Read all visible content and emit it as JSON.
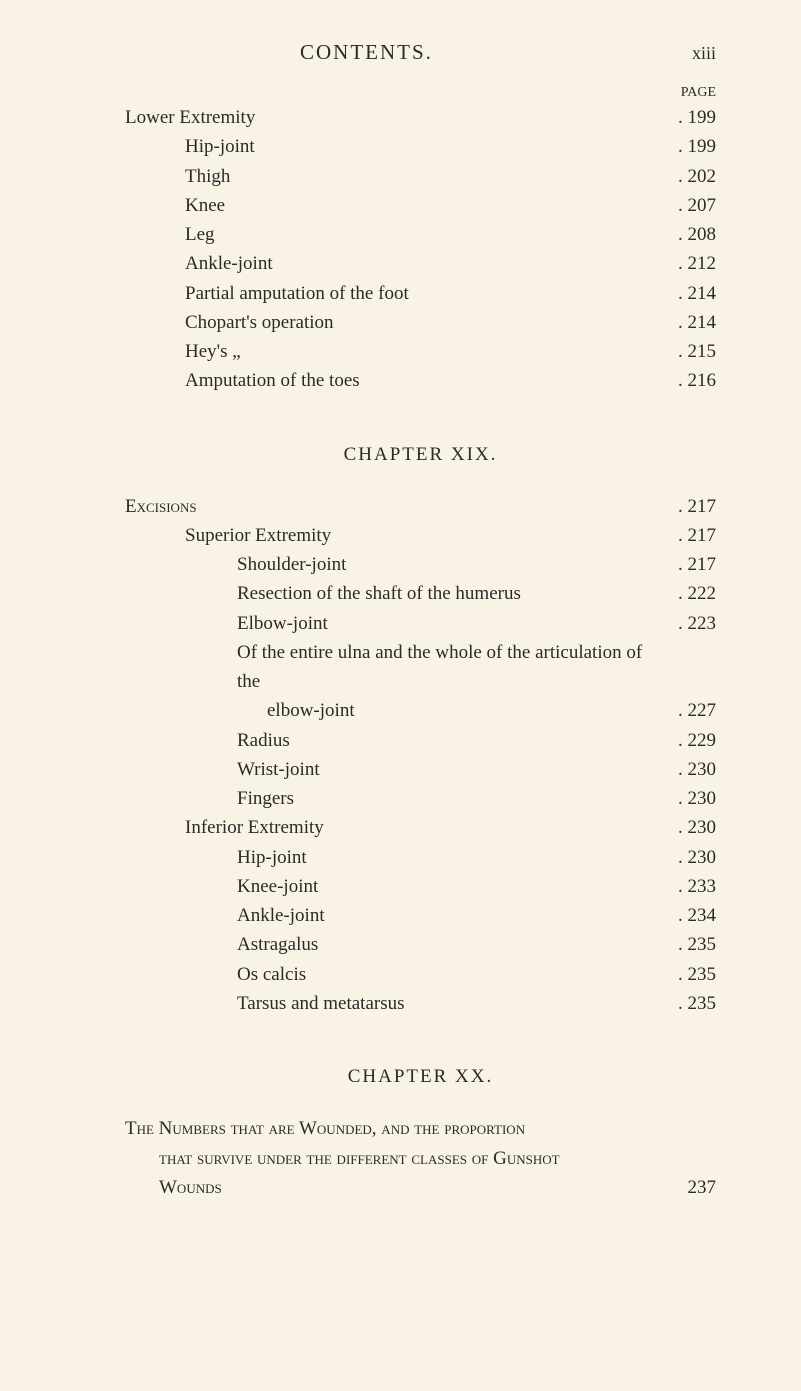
{
  "header": {
    "title": "CONTENTS.",
    "pageRoman": "xiii",
    "pageLabel": "PAGE"
  },
  "section1": {
    "rows": [
      {
        "label": "Lower Extremity",
        "page": "199",
        "indent": 0
      },
      {
        "label": "Hip-joint",
        "page": "199",
        "indent": 1
      },
      {
        "label": "Thigh",
        "page": "202",
        "indent": 1
      },
      {
        "label": "Knee",
        "page": "207",
        "indent": 1
      },
      {
        "label": "Leg",
        "page": "208",
        "indent": 1
      },
      {
        "label": "Ankle-joint",
        "page": "212",
        "indent": 1
      },
      {
        "label": "Partial amputation of the foot",
        "page": "214",
        "indent": 1
      },
      {
        "label": "Chopart's operation",
        "page": "214",
        "indent": 1
      },
      {
        "label": "Hey's        „",
        "page": "215",
        "indent": 1
      },
      {
        "label": "Amputation of the toes",
        "page": "216",
        "indent": 1
      }
    ]
  },
  "chapter19": {
    "heading": "CHAPTER XIX.",
    "rows": [
      {
        "label": "Excisions",
        "page": "217",
        "indent": 0,
        "smallcaps": true
      },
      {
        "label": "Superior Extremity",
        "page": "217",
        "indent": 1
      },
      {
        "label": "Shoulder-joint",
        "page": "217",
        "indent": 2
      },
      {
        "label": "Resection of the shaft of the humerus",
        "page": "222",
        "indent": 2
      },
      {
        "label": "Elbow-joint",
        "page": "223",
        "indent": 2
      },
      {
        "label": "Of the entire ulna and the whole of the articulation of the",
        "page": "",
        "indent": 2
      },
      {
        "label": "elbow-joint",
        "page": "227",
        "indent": 2,
        "extraIndent": 30
      },
      {
        "label": "Radius",
        "page": "229",
        "indent": 2
      },
      {
        "label": "Wrist-joint",
        "page": "230",
        "indent": 2
      },
      {
        "label": "Fingers",
        "page": "230",
        "indent": 2
      },
      {
        "label": "Inferior Extremity",
        "page": "230",
        "indent": 1
      },
      {
        "label": "Hip-joint",
        "page": "230",
        "indent": 2
      },
      {
        "label": "Knee-joint",
        "page": "233",
        "indent": 2
      },
      {
        "label": "Ankle-joint",
        "page": "234",
        "indent": 2
      },
      {
        "label": "Astragalus",
        "page": "235",
        "indent": 2
      },
      {
        "label": "Os calcis",
        "page": "235",
        "indent": 2
      },
      {
        "label": "Tarsus and metatarsus",
        "page": "235",
        "indent": 2
      }
    ]
  },
  "chapter20": {
    "heading": "CHAPTER XX.",
    "line1": "The Numbers that are Wounded, and the proportion",
    "line2": "that survive under the different classes of Gunshot",
    "line3": "Wounds",
    "page": "237"
  },
  "colors": {
    "background": "#f8f3e4",
    "text": "#2a2a2a"
  },
  "typography": {
    "bodyFontFamily": "Georgia, 'Times New Roman', serif",
    "bodyFontSize": 19,
    "titleFontSize": 21,
    "lineHeight": 1.54
  }
}
